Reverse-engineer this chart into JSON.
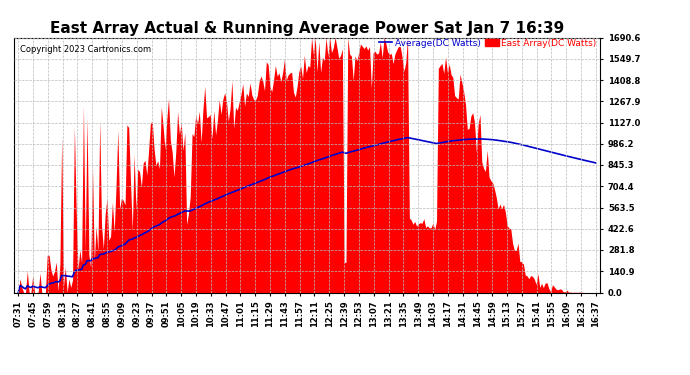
{
  "title": "East Array Actual & Running Average Power Sat Jan 7 16:39",
  "copyright": "Copyright 2023 Cartronics.com",
  "legend_avg": "Average(DC Watts)",
  "legend_east": "East Array(DC Watts)",
  "yticks": [
    0.0,
    140.9,
    281.8,
    422.6,
    563.5,
    704.4,
    845.3,
    986.2,
    1127.0,
    1267.9,
    1408.8,
    1549.7,
    1690.6
  ],
  "ymax": 1690.6,
  "ymin": 0.0,
  "bg_color": "#ffffff",
  "grid_color": "#bbbbbb",
  "fill_color": "#ff0000",
  "avg_line_color": "#0000cc",
  "title_fontsize": 11,
  "copyright_fontsize": 6,
  "tick_fontsize": 6,
  "xtick_labels": [
    "07:31",
    "07:45",
    "07:59",
    "08:13",
    "08:27",
    "08:41",
    "08:55",
    "09:09",
    "09:23",
    "09:37",
    "09:51",
    "10:05",
    "10:19",
    "10:33",
    "10:47",
    "11:01",
    "11:15",
    "11:29",
    "11:43",
    "11:57",
    "12:11",
    "12:25",
    "12:39",
    "12:53",
    "13:07",
    "13:21",
    "13:35",
    "13:49",
    "14:03",
    "14:17",
    "14:31",
    "14:45",
    "14:59",
    "15:13",
    "15:27",
    "15:41",
    "15:55",
    "16:09",
    "16:23",
    "16:37"
  ]
}
